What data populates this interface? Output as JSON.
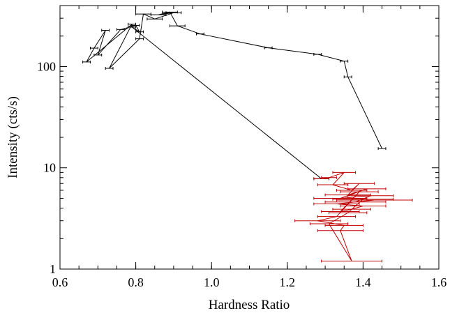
{
  "chart_data": {
    "type": "line",
    "title": "",
    "xlabel": "Hardness Ratio",
    "ylabel": "Intensity (cts/s)",
    "xlim": [
      0.6,
      1.6
    ],
    "ylim": [
      1,
      400
    ],
    "yscale": "log",
    "grid": false,
    "legend": "none",
    "xticks": [
      "0.6",
      "0.8",
      "1.0",
      "1.2",
      "1.4",
      "1.6"
    ],
    "xtick_values": [
      0.6,
      0.8,
      1.0,
      1.2,
      1.4,
      1.6
    ],
    "yticks": [
      "1",
      "10",
      "100"
    ],
    "ytick_values": [
      1,
      10,
      100
    ],
    "series": [
      {
        "color": "#000000",
        "points": [
          {
            "x": 1.45,
            "y": 15.5,
            "xerr": 0.01
          },
          {
            "x": 1.36,
            "y": 79,
            "xerr": 0.01
          },
          {
            "x": 1.35,
            "y": 113,
            "xerr": 0.01
          },
          {
            "x": 1.28,
            "y": 132,
            "xerr": 0.01
          },
          {
            "x": 1.15,
            "y": 153,
            "xerr": 0.01
          },
          {
            "x": 0.97,
            "y": 210,
            "xerr": 0.01
          },
          {
            "x": 0.91,
            "y": 252,
            "xerr": 0.02
          },
          {
            "x": 0.89,
            "y": 345,
            "xerr": 0.02
          },
          {
            "x": 0.86,
            "y": 325,
            "xerr": 0.02
          },
          {
            "x": 0.9,
            "y": 340,
            "xerr": 0.02
          },
          {
            "x": 0.85,
            "y": 295,
            "xerr": 0.02
          },
          {
            "x": 0.82,
            "y": 330,
            "xerr": 0.02
          },
          {
            "x": 0.81,
            "y": 188,
            "xerr": 0.01
          },
          {
            "x": 0.73,
            "y": 96,
            "xerr": 0.01
          },
          {
            "x": 0.79,
            "y": 262,
            "xerr": 0.01
          },
          {
            "x": 0.67,
            "y": 111,
            "xerr": 0.01
          },
          {
            "x": 0.69,
            "y": 152,
            "xerr": 0.01
          },
          {
            "x": 0.72,
            "y": 228,
            "xerr": 0.01
          },
          {
            "x": 0.7,
            "y": 130,
            "xerr": 0.01
          },
          {
            "x": 0.76,
            "y": 232,
            "xerr": 0.01
          },
          {
            "x": 0.8,
            "y": 255,
            "xerr": 0.01
          },
          {
            "x": 0.81,
            "y": 220,
            "xerr": 0.01
          },
          {
            "x": 0.79,
            "y": 245,
            "xerr": 0.01
          },
          {
            "x": 1.29,
            "y": 7.8,
            "xerr": 0.02
          }
        ]
      },
      {
        "color": "#c00000",
        "points": [
          {
            "x": 1.29,
            "y": 7.8,
            "xerr": 0.02
          },
          {
            "x": 1.31,
            "y": 8.0,
            "xerr": 0.02
          },
          {
            "x": 1.35,
            "y": 9.0,
            "xerr": 0.03
          },
          {
            "x": 1.32,
            "y": 6.8,
            "xerr": 0.04
          },
          {
            "x": 1.37,
            "y": 6.0,
            "xerr": 0.04
          },
          {
            "x": 1.39,
            "y": 7.0,
            "xerr": 0.04
          },
          {
            "x": 1.36,
            "y": 5.4,
            "xerr": 0.06
          },
          {
            "x": 1.41,
            "y": 6.2,
            "xerr": 0.05
          },
          {
            "x": 1.34,
            "y": 5.0,
            "xerr": 0.07
          },
          {
            "x": 1.42,
            "y": 5.3,
            "xerr": 0.06
          },
          {
            "x": 1.38,
            "y": 4.6,
            "xerr": 0.08
          },
          {
            "x": 1.43,
            "y": 4.8,
            "xerr": 0.1
          },
          {
            "x": 1.33,
            "y": 4.4,
            "xerr": 0.06
          },
          {
            "x": 1.4,
            "y": 4.2,
            "xerr": 0.06
          },
          {
            "x": 1.37,
            "y": 3.9,
            "xerr": 0.05
          },
          {
            "x": 1.34,
            "y": 3.7,
            "xerr": 0.05
          },
          {
            "x": 1.39,
            "y": 5.8,
            "xerr": 0.05
          },
          {
            "x": 1.33,
            "y": 3.3,
            "xerr": 0.05
          },
          {
            "x": 1.28,
            "y": 3.0,
            "xerr": 0.06
          },
          {
            "x": 1.35,
            "y": 2.7,
            "xerr": 0.05
          },
          {
            "x": 1.34,
            "y": 2.4,
            "xerr": 0.06
          },
          {
            "x": 1.37,
            "y": 1.2,
            "xerr": 0.08
          },
          {
            "x": 1.31,
            "y": 2.8,
            "xerr": 0.05
          },
          {
            "x": 1.36,
            "y": 3.6,
            "xerr": 0.05
          },
          {
            "x": 1.4,
            "y": 4.9,
            "xerr": 0.08
          }
        ]
      }
    ]
  }
}
